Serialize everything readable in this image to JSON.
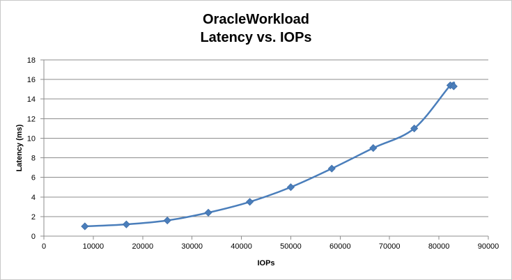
{
  "chart_data": {
    "type": "line",
    "title_lines": [
      "OracleWorkload",
      "Latency vs. IOPs"
    ],
    "xlabel": "IOPs",
    "ylabel": "Latency (ms)",
    "xlim": [
      0,
      90000
    ],
    "ylim": [
      0,
      18
    ],
    "x_ticks": [
      0,
      10000,
      20000,
      30000,
      40000,
      50000,
      60000,
      70000,
      80000,
      90000
    ],
    "y_ticks": [
      0,
      2,
      4,
      6,
      8,
      10,
      12,
      14,
      16,
      18
    ],
    "grid": "horizontal",
    "legend": "none",
    "smooth": true,
    "series": [
      {
        "color": "#4a7ebb",
        "x": [
          8300,
          16700,
          25000,
          33300,
          41700,
          50000,
          58300,
          66700,
          75000,
          82300,
          83000
        ],
        "y": [
          1.0,
          1.2,
          1.6,
          2.4,
          3.5,
          5.0,
          6.9,
          9.0,
          11.0,
          15.4,
          15.3
        ]
      }
    ]
  }
}
